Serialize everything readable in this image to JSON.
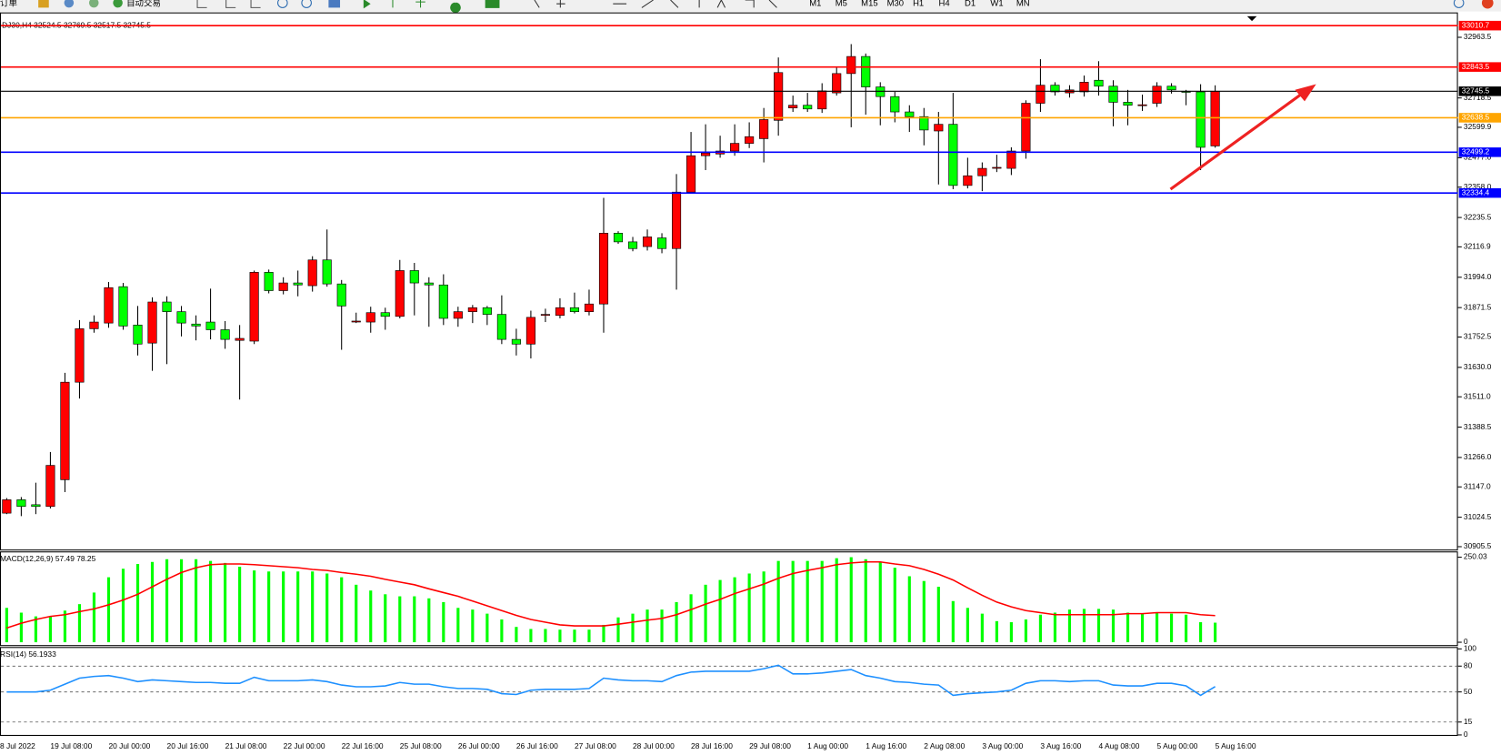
{
  "toolbar": {
    "buttons": [
      "订单",
      "自动交易"
    ],
    "timeframes": [
      "M1",
      "M5",
      "M15",
      "M30",
      "H1",
      "H4",
      "D1",
      "W1",
      "MN"
    ]
  },
  "chart_data": [
    {
      "type": "candlestick",
      "title": "DJ30,H4 32524.5 32769.5 32517.5 32745.5",
      "x_edge_label": "8 Jul 2022",
      "categories": [
        null,
        null,
        null,
        "19 Jul 08:00",
        null,
        null,
        null,
        "20 Jul 00:00",
        null,
        null,
        null,
        "20 Jul 16:00",
        null,
        null,
        null,
        "21 Jul 08:00",
        null,
        null,
        null,
        "22 Jul 00:00",
        null,
        null,
        null,
        "22 Jul 16:00",
        null,
        null,
        null,
        "25 Jul 08:00",
        null,
        null,
        null,
        "26 Jul 00:00",
        null,
        null,
        null,
        "26 Jul 16:00",
        null,
        null,
        null,
        "27 Jul 08:00",
        null,
        null,
        null,
        "28 Jul 00:00",
        null,
        null,
        null,
        "28 Jul 16:00",
        null,
        null,
        null,
        "29 Jul 08:00",
        null,
        null,
        null,
        "1 Aug 00:00",
        null,
        null,
        null,
        "1 Aug 16:00",
        null,
        null,
        null,
        "2 Aug 08:00",
        null,
        null,
        null,
        "3 Aug 00:00",
        null,
        null,
        null,
        "3 Aug 16:00",
        null,
        null,
        null,
        "4 Aug 08:00",
        null,
        null,
        null,
        "5 Aug 00:00",
        null,
        null,
        null,
        "5 Aug 16:00"
      ],
      "open": [
        31041,
        31095,
        31075,
        31068,
        31176,
        31570,
        31786,
        31809,
        31956,
        31801,
        31728,
        31894,
        31855,
        31805,
        31813,
        31782,
        31739,
        31736,
        32014,
        31940,
        31971,
        31960,
        32064,
        31967,
        31815,
        31813,
        31851,
        31836,
        32021,
        31971,
        31963,
        31828,
        31855,
        31871,
        31844,
        31743,
        31724,
        31842,
        31840,
        31871,
        31855,
        31886,
        32172,
        32137,
        32118,
        32153,
        32110,
        32338,
        32485,
        32492,
        32504,
        32535,
        32554,
        32628,
        32678,
        32689,
        32674,
        32739,
        32817,
        32886,
        32763,
        32724,
        32662,
        32643,
        32585,
        32612,
        32365,
        32404,
        32436,
        32434,
        32504,
        32697,
        32770,
        32739,
        32743,
        32790,
        32766,
        32701,
        32689,
        32697,
        32766,
        32745,
        32743,
        32524.5
      ],
      "high": [
        31102,
        31106,
        31164,
        31288,
        31608,
        31821,
        31840,
        31975,
        31971,
        31878,
        31913,
        31917,
        31878,
        31840,
        31948,
        31817,
        31801,
        32021,
        32025,
        31994,
        32021,
        32079,
        32187,
        31983,
        31851,
        31875,
        31871,
        32064,
        32052,
        31994,
        32006,
        31875,
        31882,
        31878,
        31921,
        31786,
        31859,
        31867,
        31909,
        31932,
        31944,
        32315,
        32180,
        32157,
        32187,
        32172,
        32411,
        32581,
        32612,
        32566,
        32612,
        32620,
        32678,
        32882,
        32728,
        32739,
        32778,
        32844,
        32936,
        32898,
        32782,
        32743,
        32689,
        32678,
        32662,
        32739,
        32477,
        32458,
        32489,
        32519,
        32709,
        32875,
        32782,
        32770,
        32809,
        32867,
        32790,
        32751,
        32732,
        32782,
        32778,
        32751,
        32774,
        32769.5
      ],
      "low": [
        31037,
        31029,
        31037,
        31060,
        31126,
        31504,
        31770,
        31790,
        31782,
        31678,
        31616,
        31643,
        31755,
        31739,
        31743,
        31705,
        31500,
        31724,
        31929,
        31925,
        31917,
        31936,
        31956,
        31701,
        31809,
        31770,
        31782,
        31828,
        31840,
        31794,
        31801,
        31794,
        31809,
        31801,
        31724,
        31678,
        31666,
        31813,
        31828,
        31848,
        31840,
        31770,
        32129,
        32099,
        32102,
        32091,
        31944,
        32338,
        32427,
        32477,
        32485,
        32516,
        32458,
        32566,
        32662,
        32662,
        32658,
        32728,
        32600,
        32651,
        32608,
        32620,
        32581,
        32527,
        32369,
        32350,
        32353,
        32342,
        32419,
        32407,
        32473,
        32662,
        32728,
        32720,
        32724,
        32728,
        32604,
        32608,
        32666,
        32682,
        32736,
        32689,
        32427,
        32517.5
      ],
      "close": [
        31095,
        31068,
        31068,
        31234,
        31570,
        31786,
        31813,
        31952,
        31797,
        31724,
        31894,
        31855,
        31809,
        31797,
        31782,
        31743,
        31747,
        32014,
        31940,
        31971,
        31963,
        32064,
        31967,
        31878,
        31817,
        31851,
        31836,
        32021,
        31971,
        31963,
        31828,
        31855,
        31871,
        31844,
        31743,
        31724,
        31832,
        31844,
        31871,
        31855,
        31886,
        32172,
        32137,
        32110,
        32157,
        32110,
        32338,
        32485,
        32496,
        32504,
        32535,
        32562,
        32631,
        32821,
        32689,
        32674,
        32747,
        32817,
        32886,
        32763,
        32724,
        32662,
        32643,
        32589,
        32612,
        32365,
        32404,
        32434,
        32438,
        32504,
        32697,
        32770,
        32743,
        32751,
        32782,
        32766,
        32701,
        32689,
        32691,
        32766,
        32751,
        32743,
        32519,
        32745.5
      ],
      "bull_color": "#ff0000",
      "bear_color": "#00ff00",
      "ylim": [
        30894,
        33064
      ],
      "yticks": [
        32963.5,
        32718.5,
        32599.9,
        {
          "value": 32477,
          "label": "32477.0"
        },
        {
          "value": 32358,
          "label": "32358.0"
        },
        32235.5,
        32116.9,
        {
          "value": 31994,
          "label": "31994.0"
        },
        31871.5,
        31752.5,
        {
          "value": 31630,
          "label": "31630.0"
        },
        {
          "value": 31511,
          "label": "31511.0"
        },
        31388.5,
        {
          "value": 31266,
          "label": "31266.0"
        },
        {
          "value": 31147,
          "label": "31147.0"
        },
        31024.5,
        30905.5
      ],
      "levels": [
        {
          "value": 33010.7,
          "color": "#ff0000"
        },
        {
          "value": 32843.5,
          "color": "#ff0000"
        },
        {
          "value": 32745.5,
          "color": "#000000"
        },
        {
          "value": 32638.5,
          "color": "#ffa500"
        },
        {
          "value": 32499.2,
          "color": "#0000ff"
        },
        {
          "value": 32334.4,
          "color": "#0000ff"
        }
      ]
    },
    {
      "type": "combo",
      "title": "MACD(12,26,9) 57.49 78.25",
      "series": [
        {
          "type": "bar",
          "color": "#00ff00",
          "values": [
            101,
            87,
            76,
            76,
            93,
            112,
            146,
            191,
            216,
            230,
            236,
            244,
            244,
            244,
            239,
            233,
            222,
            211,
            208,
            208,
            208,
            208,
            202,
            191,
            169,
            152,
            141,
            135,
            135,
            129,
            118,
            101,
            96,
            84,
            67,
            45,
            39,
            39,
            37,
            37,
            37,
            51,
            73,
            84,
            96,
            96,
            118,
            141,
            169,
            183,
            191,
            202,
            208,
            239,
            239,
            239,
            239,
            247,
            250,
            244,
            236,
            219,
            194,
            180,
            163,
            121,
            101,
            84,
            62,
            59,
            67,
            81,
            87,
            96,
            98,
            98,
            96,
            87,
            84,
            87,
            84,
            81,
            59,
            57.49
          ]
        },
        {
          "type": "line",
          "color": "#ff0000",
          "values": [
            42,
            56,
            67,
            76,
            81,
            90,
            98,
            110,
            124,
            141,
            163,
            185,
            205,
            219,
            228,
            230,
            230,
            228,
            225,
            222,
            219,
            214,
            211,
            205,
            200,
            194,
            185,
            177,
            169,
            157,
            146,
            135,
            121,
            107,
            93,
            79,
            67,
            59,
            51,
            48,
            48,
            48,
            53,
            59,
            65,
            70,
            81,
            96,
            112,
            126,
            143,
            157,
            171,
            188,
            202,
            211,
            219,
            228,
            233,
            236,
            236,
            230,
            225,
            214,
            200,
            183,
            160,
            138,
            118,
            104,
            93,
            87,
            81,
            81,
            81,
            81,
            81,
            84,
            84,
            87,
            87,
            87,
            81,
            78.25
          ]
        }
      ],
      "ylim": [
        -8.4,
        266.9
      ],
      "yticks": [
        0,
        250.03
      ]
    },
    {
      "type": "line",
      "title": "RSI(14) 56.1933",
      "color": "#1e90ff",
      "values": [
        50,
        50,
        50,
        52,
        59,
        66,
        68,
        69,
        66,
        62,
        64,
        63,
        62,
        61,
        61,
        60,
        60,
        67,
        63,
        63,
        63,
        64,
        62,
        58,
        56,
        56,
        57,
        61,
        59,
        59,
        56,
        54,
        54,
        53,
        48,
        47,
        52,
        53,
        53,
        53,
        54,
        66,
        64,
        63,
        63,
        62,
        69,
        73,
        74,
        74,
        74,
        74,
        77,
        81,
        71,
        71,
        72,
        74,
        76,
        69,
        66,
        62,
        61,
        59,
        58,
        46,
        48,
        49,
        50,
        52,
        60,
        63,
        63,
        62,
        63,
        63,
        58,
        57,
        57,
        60,
        60,
        57,
        46,
        56.1933
      ],
      "ylim": [
        -1.1,
        102.2
      ],
      "yticks": [
        0,
        15,
        50,
        80,
        100
      ],
      "levels": [
        15,
        50,
        80
      ]
    }
  ]
}
